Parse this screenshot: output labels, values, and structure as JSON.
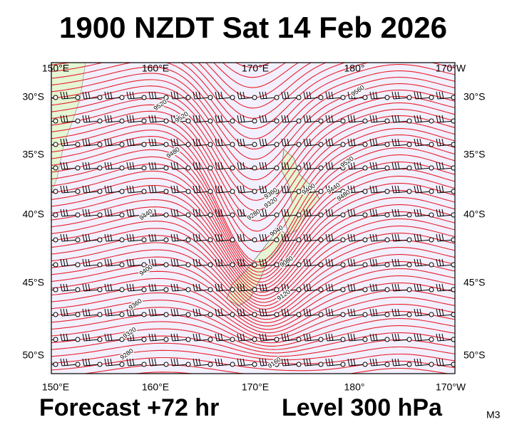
{
  "title": "1900 NZDT Sat 14 Feb 2026",
  "map": {
    "longitude_labels_top": [
      "150°E",
      "160°E",
      "170°E",
      "180°",
      "170°W"
    ],
    "longitude_labels_bottom": [
      "150°E",
      "160°E",
      "170°E",
      "180°",
      "170°W"
    ],
    "latitude_labels_left": [
      "30°S",
      "35°S",
      "40°S",
      "45°S",
      "50°S"
    ],
    "latitude_labels_right": [
      "30°S",
      "35°S",
      "40°S",
      "45°S",
      "50°S"
    ],
    "contour_labels": [
      "9560",
      "9520",
      "9520",
      "9480",
      "9440",
      "9400",
      "9360",
      "9320",
      "9280",
      "9320",
      "9280",
      "9360",
      "9400",
      "9440",
      "9480",
      "9520",
      "9040",
      "9080",
      "9120",
      "9160"
    ]
  },
  "footer": {
    "forecast": "Forecast +72 hr",
    "level": "Level 300 hPa",
    "code": "M3"
  }
}
